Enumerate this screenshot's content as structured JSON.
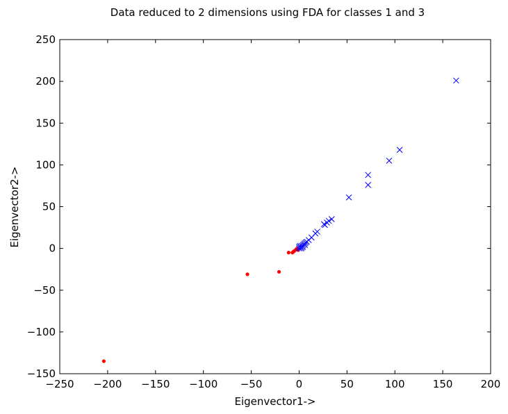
{
  "chart_data": {
    "type": "scatter",
    "title": "Data reduced to 2 dimensions using FDA for classes 1 and 3",
    "xlabel": "Eigenvector1->",
    "ylabel": "Eigenvector2->",
    "xlim": [
      -250,
      200
    ],
    "ylim": [
      -150,
      250
    ],
    "xticks": [
      -250,
      -200,
      -150,
      -100,
      -50,
      0,
      50,
      100,
      150,
      200
    ],
    "yticks": [
      -150,
      -100,
      -50,
      0,
      50,
      100,
      150,
      200,
      250
    ],
    "xtick_labels": [
      "−250",
      "−200",
      "−150",
      "−100",
      "−50",
      "0",
      "50",
      "100",
      "150",
      "200"
    ],
    "ytick_labels": [
      "−150",
      "−100",
      "−50",
      "0",
      "50",
      "100",
      "150",
      "200",
      "250"
    ],
    "grid": false,
    "series": [
      {
        "marker": "dot",
        "color": "#ff0000",
        "points": [
          [
            -204,
            -135
          ],
          [
            -54,
            -31
          ],
          [
            -21,
            -28
          ],
          [
            -11,
            -5
          ],
          [
            -7,
            -5
          ],
          [
            -6,
            -4
          ],
          [
            -5,
            -3
          ],
          [
            -3,
            -1
          ],
          [
            -2,
            0
          ],
          [
            -1,
            -2
          ]
        ]
      },
      {
        "marker": "x",
        "color": "#0000ff",
        "points": [
          [
            164,
            201
          ],
          [
            105,
            118
          ],
          [
            94,
            105
          ],
          [
            72,
            88
          ],
          [
            72,
            76
          ],
          [
            52,
            61
          ],
          [
            34,
            35
          ],
          [
            31,
            33
          ],
          [
            29,
            31
          ],
          [
            27,
            28
          ],
          [
            26,
            29
          ],
          [
            19,
            20
          ],
          [
            17,
            18
          ],
          [
            13,
            13
          ],
          [
            10,
            10
          ],
          [
            8,
            8
          ],
          [
            7,
            7
          ],
          [
            6,
            6
          ],
          [
            6,
            4
          ],
          [
            5,
            5
          ],
          [
            4,
            4
          ],
          [
            4,
            2
          ],
          [
            3,
            3
          ],
          [
            3,
            1
          ],
          [
            2,
            2
          ],
          [
            2,
            0
          ],
          [
            1,
            1
          ],
          [
            1,
            3
          ],
          [
            0,
            0
          ],
          [
            0,
            2
          ]
        ]
      }
    ]
  }
}
